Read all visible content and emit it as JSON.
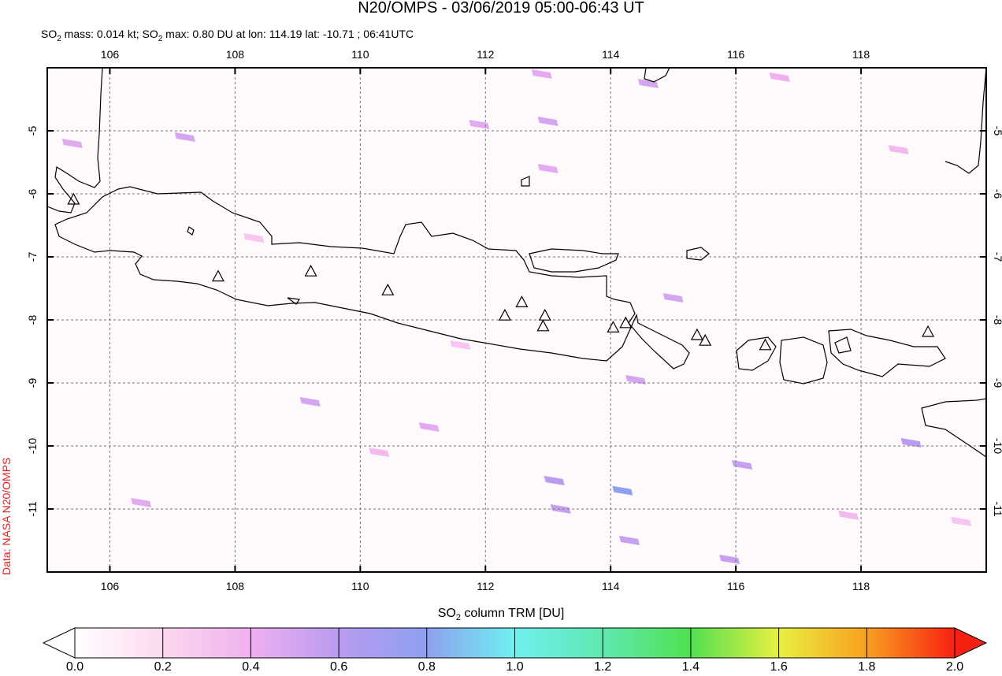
{
  "header": {
    "title": "N20/OMPS - 03/06/2019 05:00-06:43 UT",
    "subtitle": [
      "SO",
      "2",
      " mass: 0.014 kt; SO",
      "2",
      " max: 0.80 DU at lon: 114.19 lat: -10.71 ; 06:41UTC"
    ]
  },
  "side_label": "Data: NASA N20/OMPS",
  "map": {
    "xlim": [
      105,
      120
    ],
    "ylim": [
      -12,
      -4
    ],
    "lon_ticks": [
      106,
      108,
      110,
      112,
      114,
      116,
      118
    ],
    "lat_ticks": [
      -5,
      -6,
      -7,
      -8,
      -9,
      -10,
      -11
    ],
    "volcanoes": [
      {
        "lon": 105.42,
        "lat": -6.1
      },
      {
        "lon": 107.73,
        "lat": -7.32
      },
      {
        "lon": 109.21,
        "lat": -7.24
      },
      {
        "lon": 110.44,
        "lat": -7.54
      },
      {
        "lon": 112.31,
        "lat": -7.94
      },
      {
        "lon": 112.58,
        "lat": -7.73
      },
      {
        "lon": 112.95,
        "lat": -7.94
      },
      {
        "lon": 112.92,
        "lat": -8.11
      },
      {
        "lon": 114.04,
        "lat": -8.13
      },
      {
        "lon": 114.24,
        "lat": -8.06
      },
      {
        "lon": 115.38,
        "lat": -8.25
      },
      {
        "lon": 115.51,
        "lat": -8.34
      },
      {
        "lon": 116.47,
        "lat": -8.41
      },
      {
        "lon": 119.07,
        "lat": -8.2
      }
    ],
    "so2_pixels": [
      {
        "lon": 114.19,
        "lat": -10.71,
        "value": 0.8
      },
      {
        "lon": 114.3,
        "lat": -11.5,
        "value": 0.55
      },
      {
        "lon": 115.9,
        "lat": -11.8,
        "value": 0.55
      },
      {
        "lon": 113.1,
        "lat": -10.55,
        "value": 0.6
      },
      {
        "lon": 113.2,
        "lat": -11.0,
        "value": 0.55
      },
      {
        "lon": 118.8,
        "lat": -9.95,
        "value": 0.6
      },
      {
        "lon": 116.1,
        "lat": -10.3,
        "value": 0.55
      },
      {
        "lon": 112.9,
        "lat": -4.1,
        "value": 0.45
      },
      {
        "lon": 114.6,
        "lat": -4.25,
        "value": 0.5
      },
      {
        "lon": 113.0,
        "lat": -4.85,
        "value": 0.5
      },
      {
        "lon": 113.0,
        "lat": -5.6,
        "value": 0.45
      },
      {
        "lon": 111.9,
        "lat": -4.9,
        "value": 0.45
      },
      {
        "lon": 116.7,
        "lat": -4.15,
        "value": 0.4
      },
      {
        "lon": 115.0,
        "lat": -7.65,
        "value": 0.5
      },
      {
        "lon": 114.4,
        "lat": -8.95,
        "value": 0.5
      },
      {
        "lon": 107.2,
        "lat": -5.1,
        "value": 0.5
      },
      {
        "lon": 105.4,
        "lat": -5.2,
        "value": 0.45
      },
      {
        "lon": 109.2,
        "lat": -9.3,
        "value": 0.5
      },
      {
        "lon": 111.1,
        "lat": -9.7,
        "value": 0.45
      },
      {
        "lon": 118.6,
        "lat": -5.3,
        "value": 0.35
      },
      {
        "lon": 117.8,
        "lat": -11.1,
        "value": 0.35
      },
      {
        "lon": 106.5,
        "lat": -10.9,
        "value": 0.45
      },
      {
        "lon": 110.3,
        "lat": -10.1,
        "value": 0.35
      },
      {
        "lon": 108.3,
        "lat": -6.7,
        "value": 0.3
      },
      {
        "lon": 111.6,
        "lat": -8.4,
        "value": 0.3
      },
      {
        "lon": 119.6,
        "lat": -11.2,
        "value": 0.3
      }
    ]
  },
  "colorbar": {
    "label": [
      "SO",
      "2",
      " column TRM [DU]"
    ],
    "range": [
      0,
      2
    ],
    "ticks": [
      {
        "value": 0,
        "label": "0.0"
      },
      {
        "value": 0.2,
        "label": "0.2"
      },
      {
        "value": 0.4,
        "label": "0.4"
      },
      {
        "value": 0.6,
        "label": "0.6"
      },
      {
        "value": 0.8,
        "label": "0.8"
      },
      {
        "value": 1,
        "label": "1.0"
      },
      {
        "value": 1.2,
        "label": "1.2"
      },
      {
        "value": 1.4,
        "label": "1.4"
      },
      {
        "value": 1.6,
        "label": "1.6"
      },
      {
        "value": 1.8,
        "label": "1.8"
      },
      {
        "value": 2,
        "label": "2.0"
      }
    ]
  }
}
